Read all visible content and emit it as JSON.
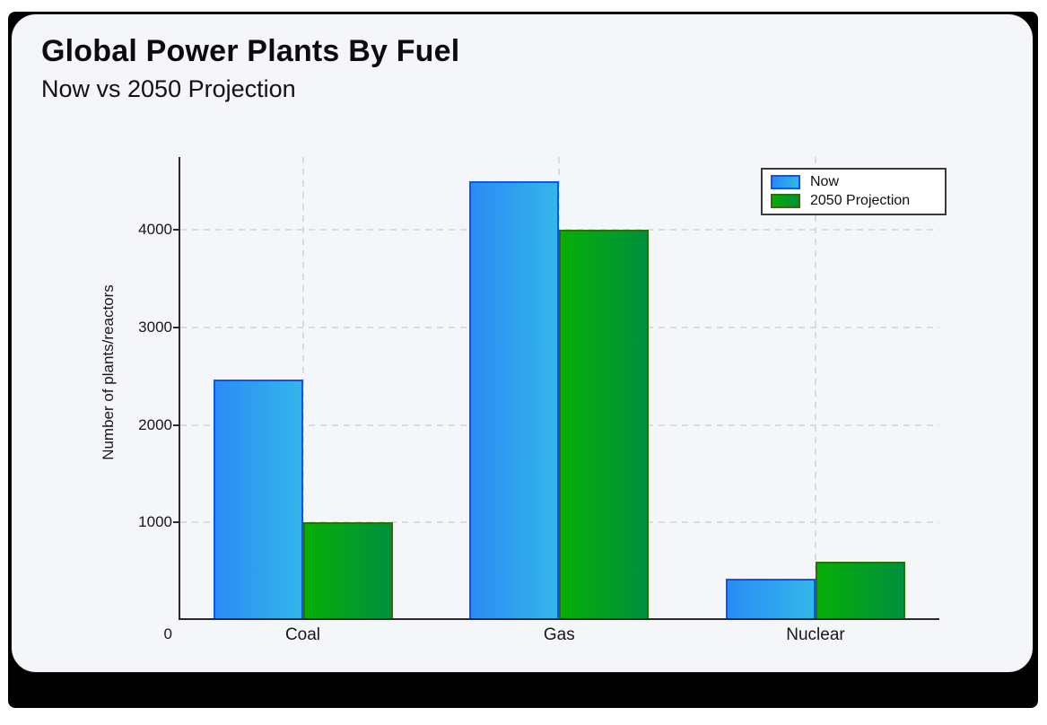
{
  "page": {
    "background": "#ffffff",
    "frame_color": "#000000",
    "card_color": "#f4f6f9"
  },
  "chart_data": {
    "type": "bar",
    "title": "Global Power Plants By Fuel",
    "subtitle": "Now vs 2050 Projection",
    "categories": [
      "Coal",
      "Gas",
      "Nuclear"
    ],
    "series": [
      {
        "name": "Now",
        "values": [
          2470,
          4500,
          420
        ],
        "fill_start": "#2a8cf4",
        "fill_end": "#33b6ea",
        "border": "#0857ee"
      },
      {
        "name": "2050 Projection",
        "values": [
          1000,
          4000,
          600
        ],
        "fill_start": "#06ae06",
        "fill_end": "#00903e",
        "border": "#2f6e00"
      }
    ],
    "xlabel": "",
    "ylabel": "Number of plants/reactors",
    "yticks": [
      0,
      1000,
      2000,
      3000,
      4000
    ],
    "origin_label": "0",
    "ylim": [
      0,
      4750
    ],
    "grid": "dashed horizontal and vertical",
    "legend_position": "top-right",
    "colors": {
      "gridline": "#d7dadf",
      "axis": "#2a2a2e",
      "text": "#17171a"
    }
  }
}
